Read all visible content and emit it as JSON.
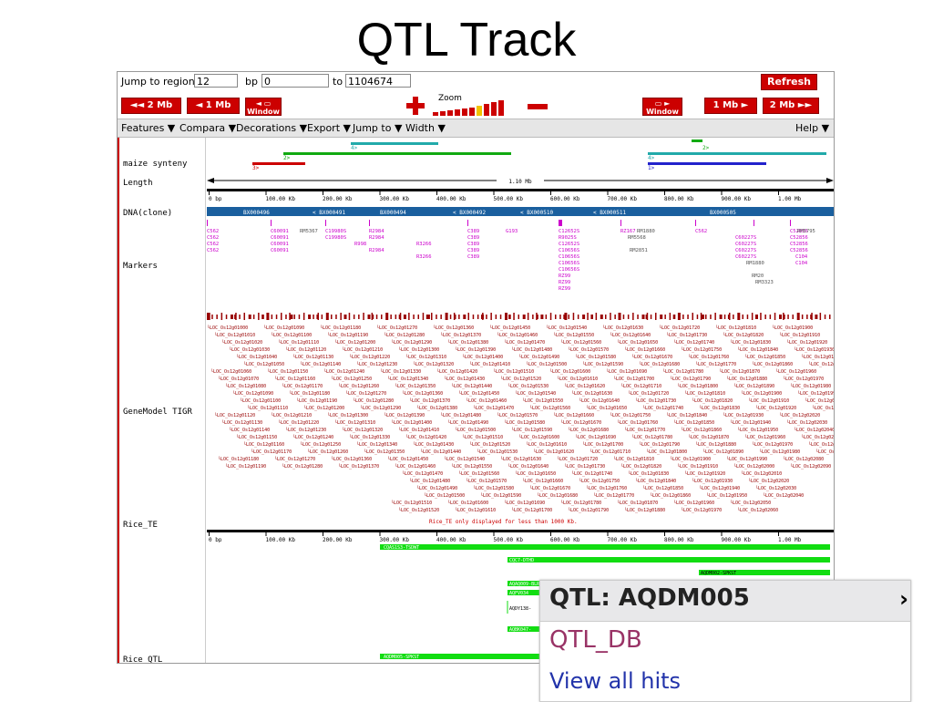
{
  "slide_title": "QTL Track",
  "nav": {
    "jump_label": "Jump to region:",
    "region_value": "12",
    "bp_label": "bp",
    "start_value": "0",
    "to_label": "to",
    "end_value": "1104674",
    "refresh_label": "Refresh",
    "left_2mb": "◄◄ 2 Mb",
    "left_1mb": "◄ 1 Mb",
    "window_label": "Window",
    "zoom_label": "Zoom",
    "right_1mb": "1 Mb ►",
    "right_2mb": "2 Mb ►►"
  },
  "menu": {
    "items": [
      "Features ▼",
      "Compara ▼",
      "Decorations ▼",
      "Export ▼",
      "Jump to ▼",
      "Width ▼"
    ],
    "help": "Help ▼"
  },
  "tracks": {
    "maize_synteny": "maize synteny",
    "length": "Length",
    "dna_clone": "DNA(clone)",
    "markers": "Markers",
    "genemodel": "GeneModel TIGR",
    "rice_te": "Rice_TE",
    "rice_qtl": "Rice_QTL",
    "length_value": "1.10 Mb",
    "synteny_labels": [
      "4>",
      "2>",
      "3>",
      "2>",
      "4>",
      "1>"
    ],
    "scale_ticks": [
      "0 bp",
      "100.00 Kb",
      "200.00 Kb",
      "300.00 Kb",
      "400.00 Kb",
      "500.00 Kb",
      "600.00 Kb",
      "700.00 Kb",
      "800.00 Kb",
      "900.00 Kb",
      "1.00 Mb",
      "1."
    ],
    "clones": [
      "BX000496",
      "< BX000491",
      "BX000494",
      "< BX000492",
      "< BX000510",
      "< BX000511",
      "BX000505"
    ],
    "rice_te_note": "Rice_TE only displayed for less than 1000 Kb.",
    "qtl_features": [
      "CQAS1S3-TSDWT",
      "CQC7-DTHD",
      "AQDM002-SPKST",
      "AQAQ009-BLRS",
      "AQFV034",
      "AQDY138-",
      "AQBK047-",
      "AQDM005-SPKST"
    ]
  },
  "popup": {
    "title": "QTL: AQDM005",
    "close": "›",
    "link1": "QTL_DB",
    "link2": "View all hits"
  }
}
